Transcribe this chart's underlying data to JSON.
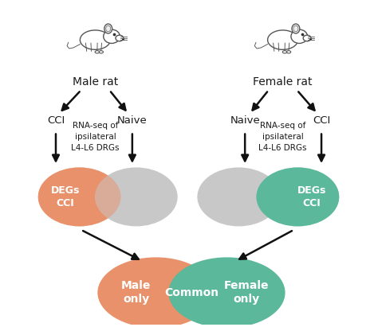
{
  "background_color": "#ffffff",
  "salmon_color": "#E8916A",
  "teal_color": "#5BB89A",
  "gray_color": "#C8C8C8",
  "text_color": "#1a1a1a",
  "arrow_color": "#111111",
  "label_male_rat": "Male rat",
  "label_female_rat": "Female rat",
  "label_cci_male": "CCI",
  "label_naive_male": "Naive",
  "label_naive_female": "Naive",
  "label_cci_female": "CCI",
  "label_rnaseq": "RNA-seq of\nipsilateral\nL4-L6 DRGs",
  "label_degs": "DEGs\nCCI",
  "label_male_only": "Male\nonly",
  "label_female_only": "Female\nonly",
  "label_common": "Common",
  "font_size_rat_label": 10,
  "font_size_cci": 9.5,
  "font_size_rnaseq": 7.5,
  "font_size_degs": 9,
  "font_size_bottom": 10
}
